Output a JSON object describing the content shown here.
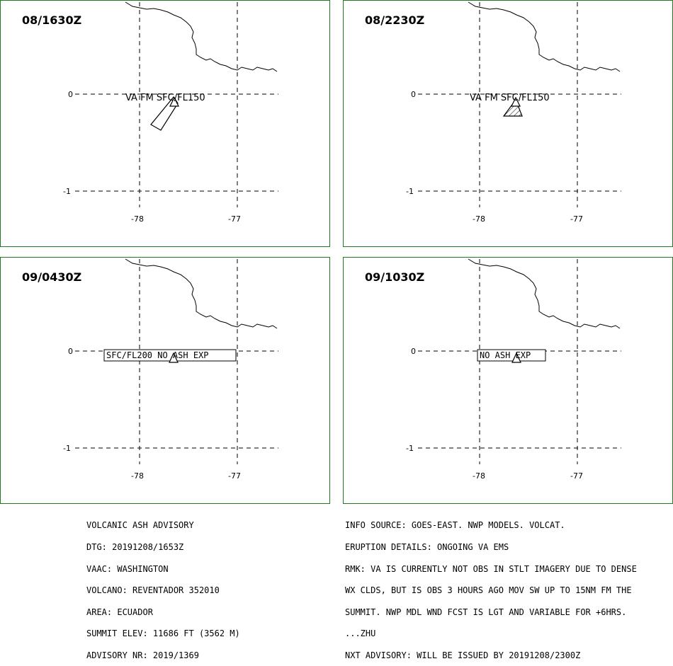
{
  "panels": [
    {
      "time": "08/1630Z",
      "label": "VA FM SFC/FL150",
      "label_boxed": false,
      "cloud": "polygon-elongated"
    },
    {
      "time": "08/2230Z",
      "label": "VA FM SFC/FL150",
      "label_boxed": false,
      "cloud": "polygon-hatched"
    },
    {
      "time": "09/0430Z",
      "label": "SFC/FL200 NO ASH EXP",
      "label_boxed": true,
      "cloud": "none"
    },
    {
      "time": "09/1030Z",
      "label": "NO ASH EXP",
      "label_boxed": true,
      "cloud": "none"
    }
  ],
  "axes": {
    "lat_labels": [
      "0",
      "-1"
    ],
    "lon_labels": [
      "-78",
      "-77"
    ]
  },
  "advisory_left": [
    "VOLCANIC ASH ADVISORY",
    "DTG: 20191208/1653Z",
    "VAAC: WASHINGTON",
    "VOLCANO: REVENTADOR 352010",
    "AREA: ECUADOR",
    "SUMMIT ELEV: 11686 FT (3562 M)",
    "ADVISORY NR: 2019/1369"
  ],
  "advisory_right": [
    "INFO SOURCE: GOES-EAST. NWP MODELS. VOLCAT.",
    "ERUPTION DETAILS: ONGOING VA EMS",
    "RMK: VA IS CURRENTLY NOT OBS IN STLT IMAGERY DUE TO DENSE",
    "WX CLDS, BUT IS OBS 3 HOURS AGO MOV SW UP TO 15NM FM THE",
    "SUMMIT. NWP MDL WND FCST IS LGT AND VARIABLE FOR +6HRS.",
    "...ZHU",
    "NXT ADVISORY: WILL BE ISSUED BY 20191208/2300Z"
  ],
  "colors": {
    "panel_border": "#1f7a1f",
    "line": "#000000",
    "background": "#ffffff"
  },
  "symbols": {
    "volcano": "triangle-icon"
  }
}
